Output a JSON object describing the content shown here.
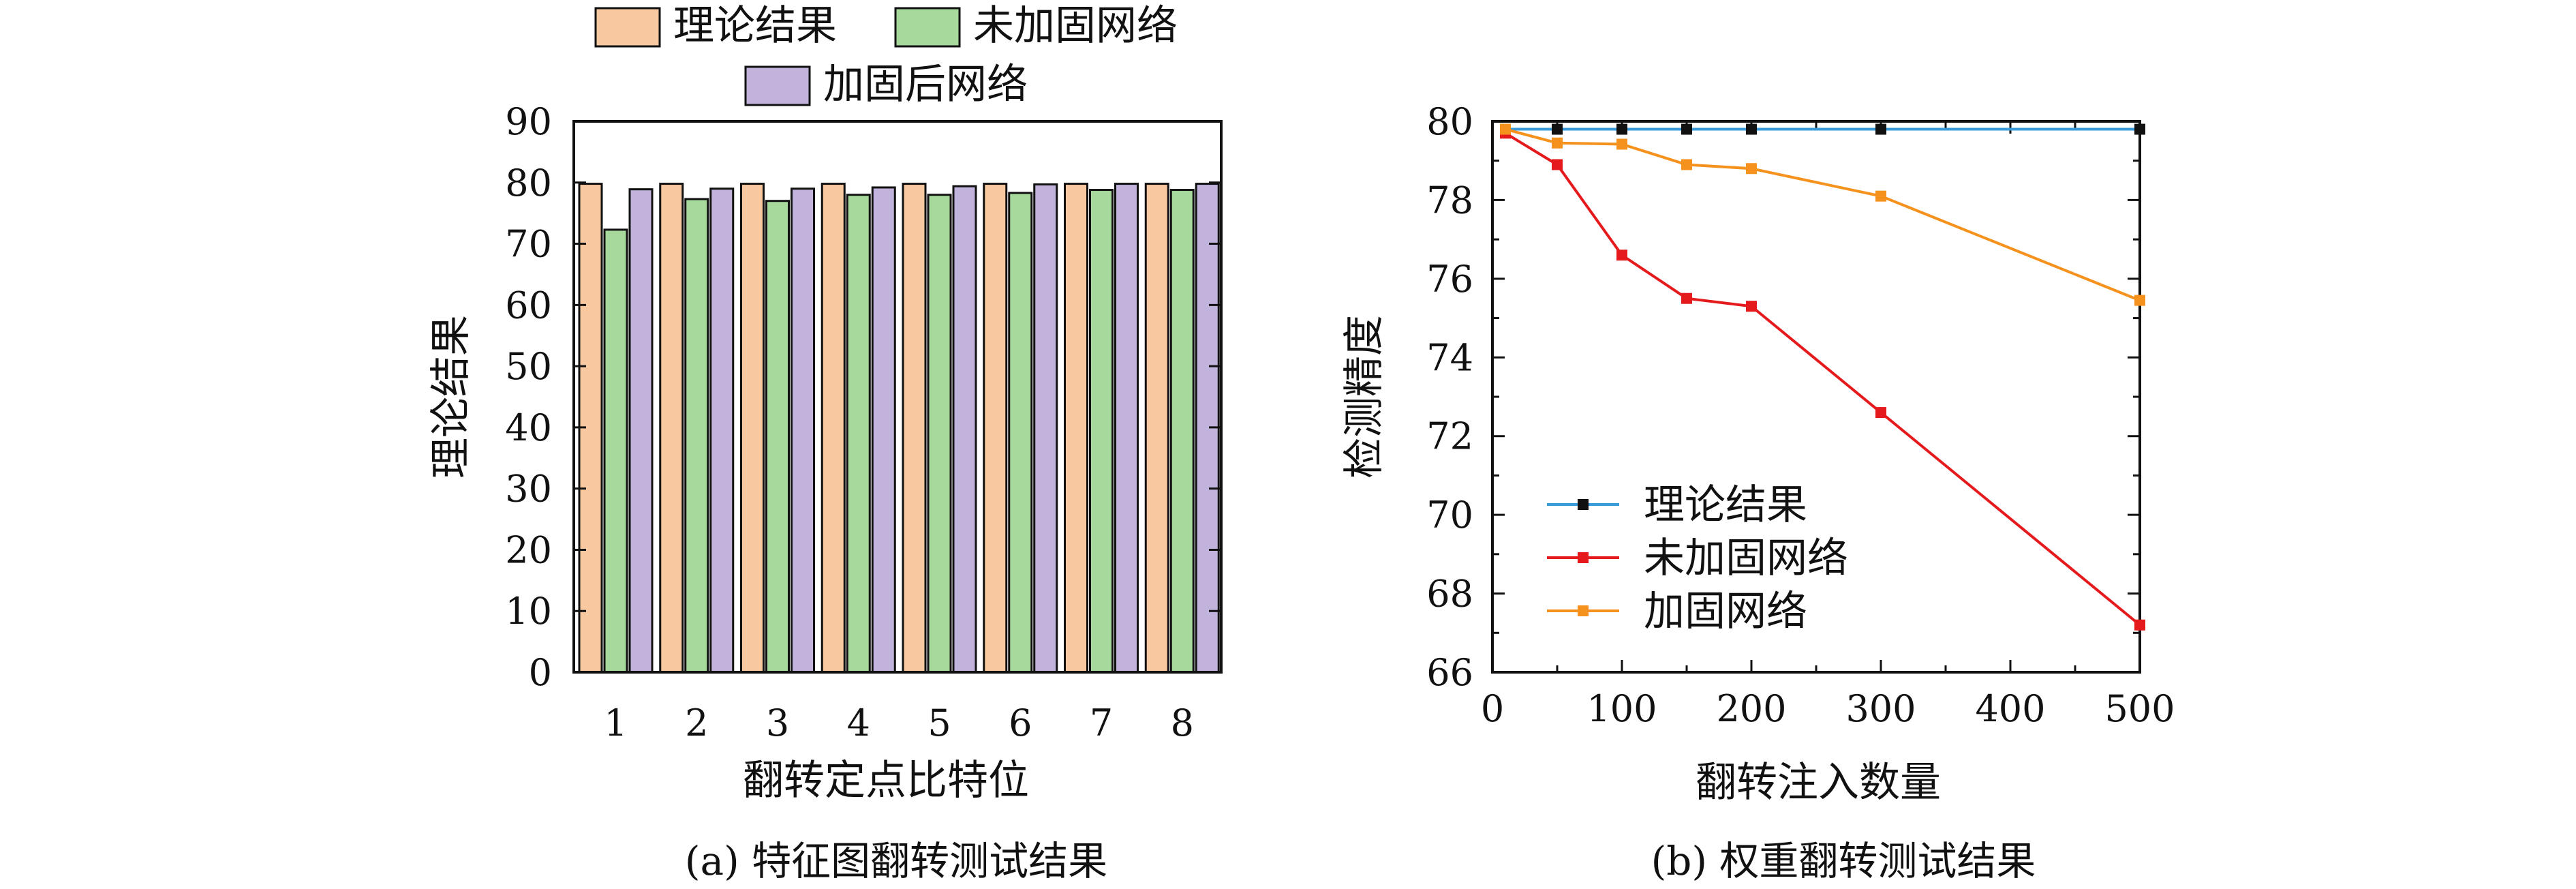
{
  "chart_data": [
    {
      "type": "bar",
      "caption": "(a) 特征图翻转测试结果",
      "xlabel": "翻转定点比特位",
      "ylabel": "理论结果",
      "categories": [
        "1",
        "2",
        "3",
        "4",
        "5",
        "6",
        "7",
        "8"
      ],
      "ylim": [
        0,
        90
      ],
      "yticks": [
        0,
        10,
        20,
        30,
        40,
        50,
        60,
        70,
        80,
        90
      ],
      "legend_position": "top",
      "series": [
        {
          "name": "理论结果",
          "color": "#f8c9a0",
          "values": [
            79.8,
            79.8,
            79.8,
            79.8,
            79.8,
            79.8,
            79.8,
            79.8
          ]
        },
        {
          "name": "未加固网络",
          "color": "#a6d99b",
          "values": [
            72.3,
            77.3,
            77.0,
            78.0,
            78.0,
            78.3,
            78.8,
            78.8
          ]
        },
        {
          "name": "加固后网络",
          "color": "#c2b3dc",
          "values": [
            78.9,
            79.0,
            79.0,
            79.2,
            79.4,
            79.7,
            79.8,
            79.8
          ]
        }
      ]
    },
    {
      "type": "line",
      "caption": "(b) 权重翻转测试结果",
      "xlabel": "翻转注入数量",
      "ylabel": "检测精度",
      "xlim": [
        0,
        500
      ],
      "ylim": [
        66,
        80
      ],
      "xticks": [
        0,
        100,
        200,
        300,
        400,
        500
      ],
      "yticks": [
        66,
        68,
        70,
        72,
        74,
        76,
        78,
        80
      ],
      "grid": false,
      "legend_position": "bottom-left",
      "x": [
        10,
        50,
        100,
        150,
        200,
        300,
        500
      ],
      "series": [
        {
          "name": "理论结果",
          "color": "#3a9ad9",
          "marker_color": "#111111",
          "values": [
            79.8,
            79.8,
            79.8,
            79.8,
            79.8,
            79.8,
            79.8
          ]
        },
        {
          "name": "未加固网络",
          "color": "#e41a1c",
          "marker_color": "#e41a1c",
          "values": [
            79.7,
            78.9,
            76.6,
            75.5,
            75.3,
            72.6,
            67.2
          ]
        },
        {
          "name": "加固网络",
          "color": "#f5921e",
          "marker_color": "#f5921e",
          "values": [
            79.8,
            79.45,
            79.42,
            78.9,
            78.8,
            78.1,
            75.45
          ]
        }
      ]
    }
  ]
}
